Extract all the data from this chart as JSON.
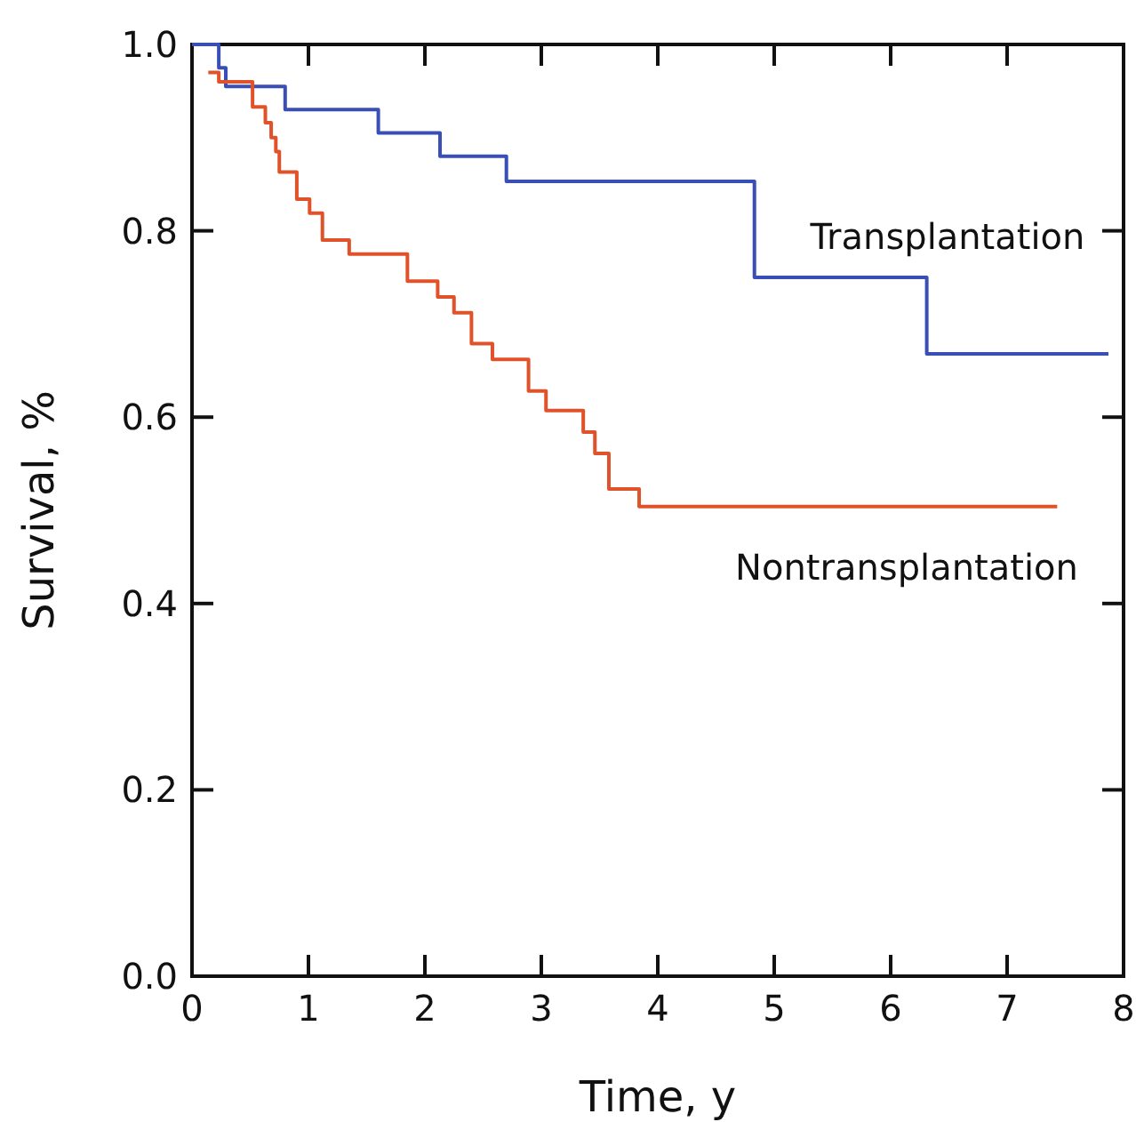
{
  "chart_data": {
    "type": "step",
    "xlabel": "Time, y",
    "ylabel": "Survival, %",
    "xlim": [
      0,
      8
    ],
    "ylim": [
      0,
      1
    ],
    "xticks": [
      0,
      1,
      2,
      3,
      4,
      5,
      6,
      7,
      8
    ],
    "yticks": [
      {
        "value": 0,
        "label": "0.0"
      },
      {
        "value": 0.2,
        "label": "0.2"
      },
      {
        "value": 0.4,
        "label": "0.4"
      },
      {
        "value": 0.6,
        "label": "0.6"
      },
      {
        "value": 0.8,
        "label": "0.8"
      },
      {
        "value": 1,
        "label": "1.0"
      }
    ],
    "grid": false,
    "marker": "none",
    "line_style": "solid",
    "series": [
      {
        "name": "Transplantation",
        "color": "#3a4fb5",
        "x": [
          0,
          0.23,
          0.29,
          0.8,
          1.6,
          2.13,
          2.7,
          4.83,
          6.31,
          7.87
        ],
        "values": [
          1,
          0.975,
          0.955,
          0.93,
          0.905,
          0.88,
          0.853,
          0.75,
          0.668,
          0.668
        ]
      },
      {
        "name": "Nontransplantation",
        "color": "#e0522a",
        "x": [
          0.14,
          0.23,
          0.52,
          0.63,
          0.68,
          0.72,
          0.75,
          0.9,
          1.01,
          1.12,
          1.35,
          1.85,
          2.11,
          2.25,
          2.4,
          2.58,
          2.89,
          3.04,
          3.36,
          3.46,
          3.58,
          3.84,
          7.43
        ],
        "values": [
          0.97,
          0.96,
          0.933,
          0.916,
          0.9,
          0.885,
          0.863,
          0.834,
          0.819,
          0.79,
          0.775,
          0.746,
          0.729,
          0.712,
          0.679,
          0.662,
          0.628,
          0.607,
          0.584,
          0.561,
          0.523,
          0.504,
          0.504
        ]
      }
    ]
  }
}
